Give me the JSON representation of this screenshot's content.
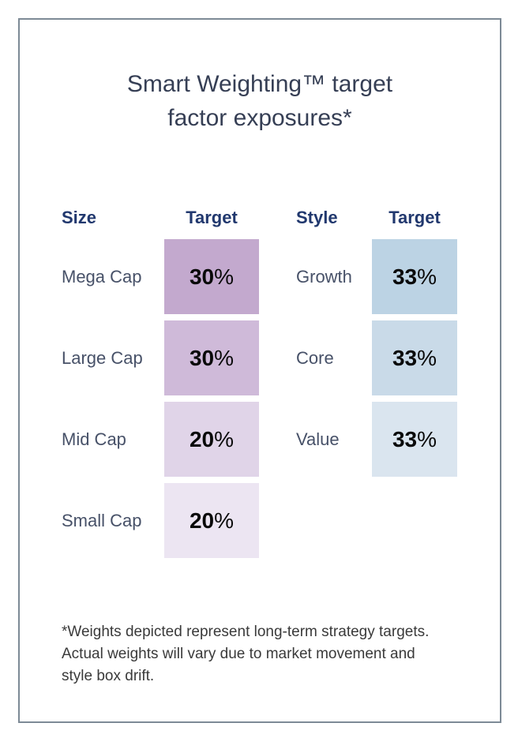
{
  "title": {
    "line1": "Smart Weighting™ target",
    "line2": "factor exposures*"
  },
  "size_table": {
    "header_label": "Size",
    "header_target": "Target",
    "rows": [
      {
        "label": "Mega Cap",
        "value": "30",
        "unit": "%",
        "color": "#c3a9ce"
      },
      {
        "label": "Large Cap",
        "value": "30",
        "unit": "%",
        "color": "#cfbad9"
      },
      {
        "label": "Mid Cap",
        "value": "20",
        "unit": "%",
        "color": "#e0d4e8"
      },
      {
        "label": "Small Cap",
        "value": "20",
        "unit": "%",
        "color": "#ece5f2"
      }
    ]
  },
  "style_table": {
    "header_label": "Style",
    "header_target": "Target",
    "rows": [
      {
        "label": "Growth",
        "value": "33",
        "unit": "%",
        "color": "#bcd3e4"
      },
      {
        "label": "Core",
        "value": "33",
        "unit": "%",
        "color": "#c9dae8"
      },
      {
        "label": "Value",
        "value": "33",
        "unit": "%",
        "color": "#dae5ef"
      }
    ]
  },
  "footnote": {
    "lines": [
      "*Weights depicted represent long-term strategy targets.",
      "Actual weights will vary due to market movement and",
      "style box drift."
    ]
  },
  "colors": {
    "card_border": "#7d8a96",
    "title_text": "#363f55",
    "header_text": "#21386e",
    "label_text": "#475168",
    "percent_text": "#0a0a0a",
    "footnote_text": "#3a3a3a"
  },
  "chart_data": [
    {
      "type": "table",
      "title": "Smart Weighting™ target factor exposures*",
      "columns": [
        "Size",
        "Target"
      ],
      "rows": [
        [
          "Mega Cap",
          "30%"
        ],
        [
          "Large Cap",
          "30%"
        ],
        [
          "Mid Cap",
          "20%"
        ],
        [
          "Small Cap",
          "20%"
        ]
      ],
      "cell_shading": "purple scale, darker = higher weight"
    },
    {
      "type": "table",
      "title": "Smart Weighting™ target factor exposures*",
      "columns": [
        "Style",
        "Target"
      ],
      "rows": [
        [
          "Growth",
          "33%"
        ],
        [
          "Core",
          "33%"
        ],
        [
          "Value",
          "33%"
        ]
      ],
      "cell_shading": "blue scale, darker toward top"
    }
  ]
}
